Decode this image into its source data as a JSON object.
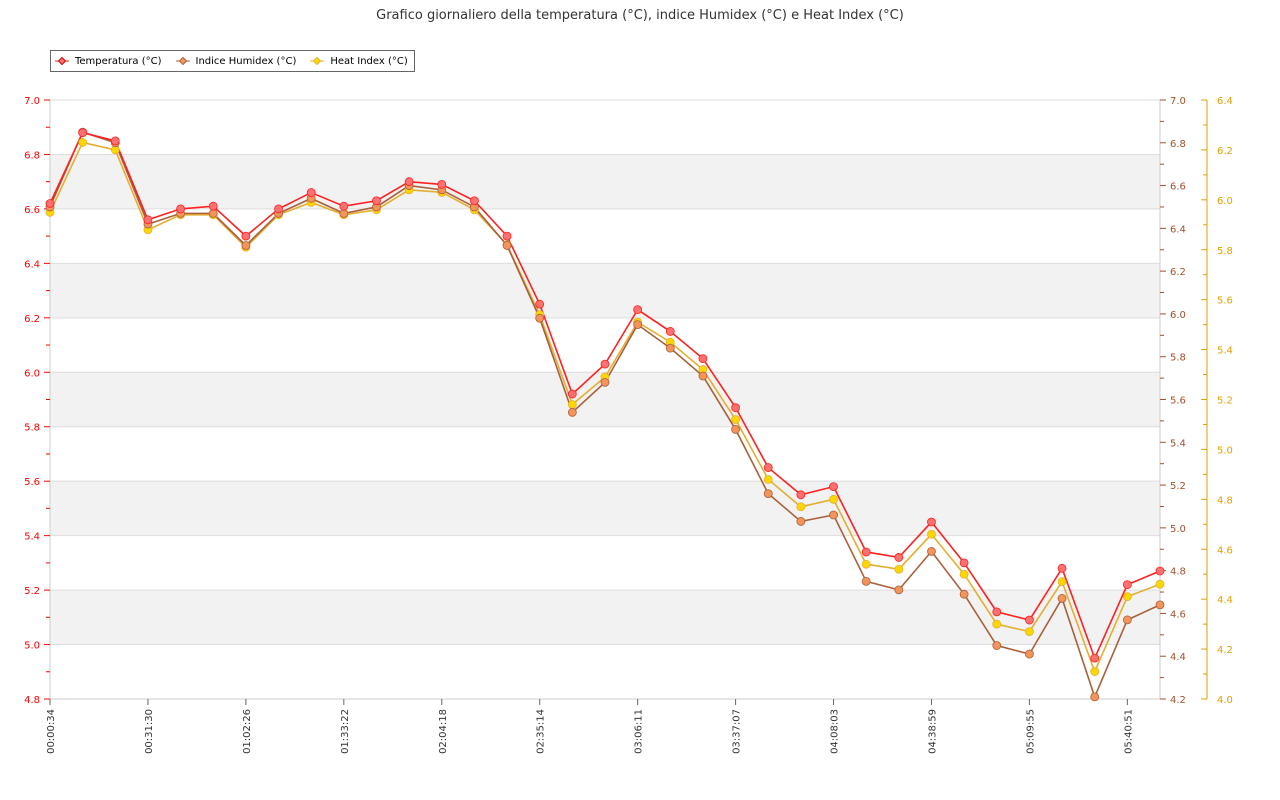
{
  "chart_data": {
    "type": "line",
    "title": "Grafico giornaliero della temperatura (°C), indice Humidex (°C) e Heat Index (°C)",
    "legend_position": "top-left",
    "x_tick_labels": [
      "00:00:34",
      "00:31:30",
      "01:02:26",
      "01:33:22",
      "02:04:18",
      "02:35:14",
      "03:06:11",
      "03:37:07",
      "04:08:03",
      "04:38:59",
      "05:09:55",
      "05:40:51"
    ],
    "x_tick_every": 3,
    "point_count": 35,
    "axes": [
      {
        "id": "left",
        "ylim": [
          4.8,
          7.0
        ],
        "step": 0.2,
        "color": "#ff0000",
        "ticks": [
          "4.8",
          "5.0",
          "5.2",
          "5.4",
          "5.6",
          "5.8",
          "6.0",
          "6.2",
          "6.4",
          "6.6",
          "6.8",
          "7.0"
        ]
      },
      {
        "id": "right1",
        "ylim": [
          4.2,
          7.0
        ],
        "step": 0.2,
        "color": "#a0522d",
        "ticks": [
          "4.2",
          "4.4",
          "4.6",
          "4.8",
          "5.0",
          "5.2",
          "5.4",
          "5.6",
          "5.8",
          "6.0",
          "6.2",
          "6.4",
          "6.6",
          "6.8",
          "7.0"
        ]
      },
      {
        "id": "right2",
        "ylim": [
          4.0,
          6.4
        ],
        "step": 0.2,
        "color": "#e0a000",
        "ticks": [
          "4.0",
          "4.2",
          "4.4",
          "4.6",
          "4.8",
          "5.0",
          "5.2",
          "5.4",
          "5.6",
          "5.8",
          "6.0",
          "6.2",
          "6.4"
        ]
      }
    ],
    "series": [
      {
        "name": "Temperatura (°C)",
        "axis": "left",
        "line": "#ff2020",
        "marker": "#ff7070",
        "values": [
          6.62,
          6.88,
          6.85,
          6.56,
          6.6,
          6.61,
          6.5,
          6.6,
          6.66,
          6.61,
          6.63,
          6.7,
          6.69,
          6.63,
          6.5,
          6.25,
          5.92,
          6.03,
          6.23,
          6.15,
          6.05,
          5.87,
          5.65,
          5.55,
          5.58,
          5.34,
          5.32,
          5.45,
          5.3,
          5.12,
          5.09,
          5.28,
          4.95,
          5.22,
          5.27
        ]
      },
      {
        "name": "Indice Humidex (°C)",
        "axis": "right1",
        "line": "#a9603a",
        "marker": "#f4935a",
        "values": [
          6.5,
          6.85,
          6.8,
          6.42,
          6.47,
          6.47,
          6.32,
          6.47,
          6.54,
          6.47,
          6.5,
          6.6,
          6.58,
          6.5,
          6.32,
          5.98,
          5.54,
          5.68,
          5.95,
          5.84,
          5.71,
          5.46,
          5.16,
          5.03,
          5.06,
          4.75,
          4.71,
          4.89,
          4.69,
          4.45,
          4.41,
          4.67,
          4.21,
          4.57,
          4.64
        ]
      },
      {
        "name": "Heat Index (°C)",
        "axis": "right2",
        "line": "#e4ae30",
        "marker": "#ffd700",
        "values": [
          5.95,
          6.23,
          6.2,
          5.88,
          5.94,
          5.94,
          5.81,
          5.94,
          5.99,
          5.94,
          5.96,
          6.04,
          6.03,
          5.96,
          5.82,
          5.54,
          5.18,
          5.29,
          5.51,
          5.43,
          5.32,
          5.12,
          4.88,
          4.77,
          4.8,
          4.54,
          4.52,
          4.66,
          4.5,
          4.3,
          4.27,
          4.47,
          4.11,
          4.41,
          4.46
        ]
      }
    ],
    "grid": true
  }
}
